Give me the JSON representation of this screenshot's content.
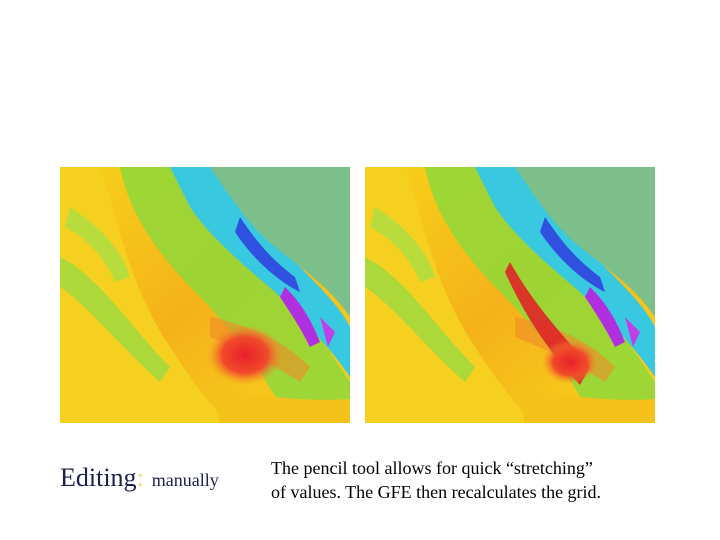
{
  "slide": {
    "heading": "Editing",
    "separator": ":",
    "subheading": "manually",
    "caption_lines": [
      "The pencil tool allows for quick “stretching”",
      "of values. The GFE then recalculates the grid."
    ]
  }
}
